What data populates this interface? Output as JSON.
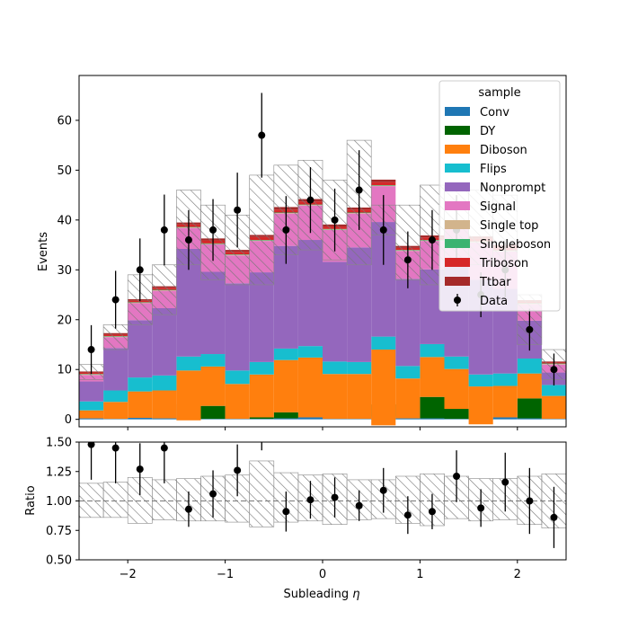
{
  "chart_data": {
    "type": "bar",
    "xlabel": "Subleading $\\eta$",
    "main": {
      "ylabel": "Events",
      "ylim": [
        -1.5,
        69
      ],
      "yticks": [
        0,
        10,
        20,
        30,
        40,
        50,
        60
      ],
      "legend_title": "sample",
      "legend_position": "upper right",
      "x_edges": [
        -2.5,
        -2.25,
        -2.0,
        -1.75,
        -1.5,
        -1.25,
        -1.0,
        -0.75,
        -0.5,
        -0.25,
        0.0,
        0.25,
        0.5,
        0.75,
        1.0,
        1.25,
        1.5,
        1.75,
        2.0,
        2.25,
        2.5
      ],
      "series": [
        {
          "name": "Conv",
          "color": "#1f77b4",
          "values": [
            0.2,
            0.1,
            0.3,
            0.2,
            0.2,
            0.1,
            0.1,
            0.1,
            0.2,
            0.4,
            0.1,
            0.1,
            0.5,
            0.2,
            0.2,
            0.1,
            0.1,
            0.4,
            0.2,
            0.1
          ]
        },
        {
          "name": "DY",
          "color": "#006400",
          "values": [
            0.0,
            0.0,
            0.0,
            0.0,
            2.8,
            2.6,
            0.0,
            0.3,
            1.2,
            0.0,
            0.0,
            0.0,
            2.5,
            0.0,
            4.3,
            2.0,
            0.0,
            0.0,
            4.0,
            0.0
          ]
        },
        {
          "name": "Diboson",
          "color": "#ff7f0e",
          "values": [
            1.6,
            3.4,
            5.3,
            5.6,
            6.8,
            7.9,
            7.0,
            8.6,
            10.5,
            12.0,
            9.0,
            9.0,
            11.0,
            8.0,
            8.0,
            8.0,
            6.5,
            6.3,
            5.0,
            4.6
          ]
        },
        {
          "name": "Flips",
          "color": "#17becf",
          "values": [
            1.8,
            2.3,
            2.8,
            3.0,
            2.8,
            2.5,
            2.7,
            2.5,
            2.3,
            2.3,
            2.5,
            2.4,
            2.6,
            2.5,
            2.6,
            2.5,
            2.4,
            2.5,
            3.0,
            2.2
          ]
        },
        {
          "name": "Nonprompt",
          "color": "#9467bd",
          "values": [
            4.0,
            8.5,
            11.5,
            13.5,
            21.6,
            16.5,
            17.5,
            18.0,
            20.6,
            21.3,
            20.0,
            23.0,
            23.0,
            17.5,
            15.0,
            18.5,
            19.0,
            17.0,
            7.6,
            2.5
          ]
        },
        {
          "name": "Signal",
          "color": "#e377c2",
          "values": [
            1.3,
            2.2,
            3.4,
            3.5,
            4.2,
            5.5,
            5.6,
            6.3,
            6.5,
            6.9,
            6.4,
            6.8,
            7.2,
            5.6,
            5.7,
            7.2,
            7.5,
            7.5,
            3.3,
            1.6
          ]
        },
        {
          "name": "Single top",
          "color": "#d2b48c",
          "values": [
            0.1,
            0.1,
            0.1,
            0.1,
            0.1,
            0.1,
            0.1,
            0.1,
            0.1,
            0.1,
            0.1,
            0.1,
            0.1,
            0.1,
            0.1,
            0.1,
            0.1,
            0.1,
            0.1,
            0.1
          ]
        },
        {
          "name": "Singleboson",
          "color": "#3cb371",
          "values": [
            0.1,
            0.1,
            0.1,
            0.1,
            0.1,
            0.1,
            0.1,
            0.1,
            0.1,
            0.1,
            0.1,
            0.1,
            0.1,
            0.1,
            0.1,
            0.1,
            0.1,
            0.1,
            0.1,
            0.1
          ]
        },
        {
          "name": "Triboson",
          "color": "#d62728",
          "values": [
            0.3,
            0.3,
            0.3,
            0.4,
            0.5,
            0.6,
            0.5,
            0.6,
            0.6,
            0.6,
            0.5,
            0.6,
            0.6,
            0.4,
            0.5,
            0.6,
            0.6,
            0.6,
            0.3,
            0.2
          ]
        },
        {
          "name": "Ttbar",
          "color": "#a52a2a",
          "values": [
            0.2,
            0.3,
            0.3,
            0.3,
            0.4,
            0.4,
            0.4,
            0.4,
            0.5,
            0.5,
            0.4,
            0.4,
            0.5,
            0.4,
            0.4,
            0.4,
            0.4,
            0.5,
            0.3,
            0.2
          ]
        }
      ],
      "negative_bins": [
        {
          "series": "Diboson",
          "bin": 12,
          "to": -1.2
        },
        {
          "series": "Diboson",
          "bin": 16,
          "to": -1.0
        },
        {
          "series": "Diboson",
          "bin": 4,
          "to": -0.2
        }
      ],
      "uncertainty": {
        "lo": [
          8.0,
          14.0,
          19.0,
          21.0,
          31.0,
          28.0,
          27.0,
          27.0,
          33.0,
          34.0,
          32.0,
          31.0,
          37.0,
          28.0,
          27.0,
          31.0,
          31.0,
          31.0,
          15.0,
          8.0
        ],
        "hi": [
          11.0,
          19.0,
          29.0,
          31.0,
          46.0,
          43.0,
          41.0,
          49.0,
          51.0,
          52.0,
          48.0,
          56.0,
          43.0,
          43.0,
          47.0,
          47.0,
          46.0,
          45.0,
          25.0,
          14.0
        ]
      },
      "data": {
        "name": "Data",
        "x": [
          -2.375,
          -2.125,
          -1.875,
          -1.625,
          -1.375,
          -1.125,
          -0.875,
          -0.625,
          -0.375,
          -0.125,
          0.125,
          0.375,
          0.625,
          0.875,
          1.125,
          1.375,
          1.625,
          1.875,
          2.125,
          2.375
        ],
        "y": [
          14,
          24,
          30,
          38,
          36,
          38,
          42,
          57,
          38,
          44,
          40,
          46,
          38,
          32,
          36,
          38,
          25,
          30,
          18,
          10
        ],
        "err": [
          4.9,
          5.8,
          6.3,
          7.1,
          6.0,
          6.2,
          7.5,
          8.5,
          6.8,
          6.6,
          6.3,
          8.0,
          7.0,
          5.7,
          6.0,
          7.0,
          4.5,
          5.5,
          4.2,
          3.2
        ]
      }
    },
    "ratio": {
      "ylabel": "Ratio",
      "ylim": [
        0.5,
        1.5
      ],
      "yticks": [
        "0.50",
        "0.75",
        "1.00",
        "1.25",
        "1.50"
      ],
      "xticks": [
        -2,
        -1,
        0,
        1,
        2
      ],
      "band_lo": [
        0.86,
        0.86,
        0.81,
        0.84,
        0.83,
        0.83,
        0.82,
        0.78,
        0.82,
        0.83,
        0.8,
        0.84,
        0.85,
        0.81,
        0.79,
        0.85,
        0.83,
        0.84,
        0.8,
        0.77
      ],
      "band_hi": [
        1.15,
        1.16,
        1.2,
        1.18,
        1.19,
        1.21,
        1.22,
        1.34,
        1.24,
        1.22,
        1.23,
        1.18,
        1.18,
        1.21,
        1.23,
        1.21,
        1.19,
        1.19,
        1.21,
        1.23
      ],
      "points_y": [
        1.48,
        1.45,
        1.27,
        1.45,
        0.93,
        1.06,
        1.26,
        1.68,
        0.91,
        1.01,
        1.03,
        0.96,
        1.09,
        0.88,
        0.91,
        1.21,
        0.94,
        1.16,
        1.0,
        0.86
      ],
      "points_err": [
        0.3,
        0.3,
        0.22,
        0.3,
        0.15,
        0.2,
        0.22,
        0.25,
        0.17,
        0.16,
        0.17,
        0.13,
        0.19,
        0.16,
        0.15,
        0.22,
        0.16,
        0.25,
        0.28,
        0.26
      ]
    }
  }
}
